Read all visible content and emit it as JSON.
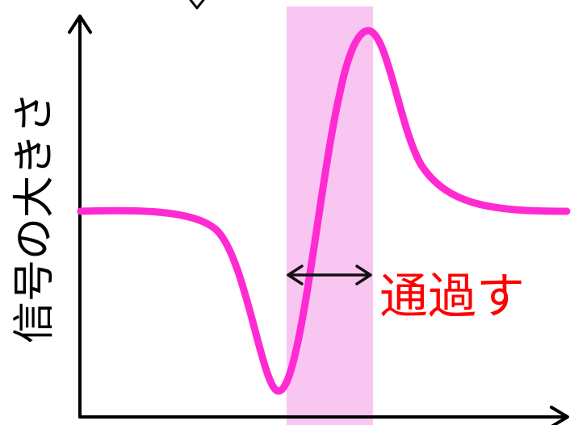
{
  "diagram": {
    "y_axis_label": "信号の大きさ",
    "annotation": "通過す",
    "colors": {
      "signal_curve": "#ff2ad1",
      "highlight_band": "#f9c6f2",
      "annotation_text": "#ff0000",
      "axes": "#000000"
    }
  }
}
